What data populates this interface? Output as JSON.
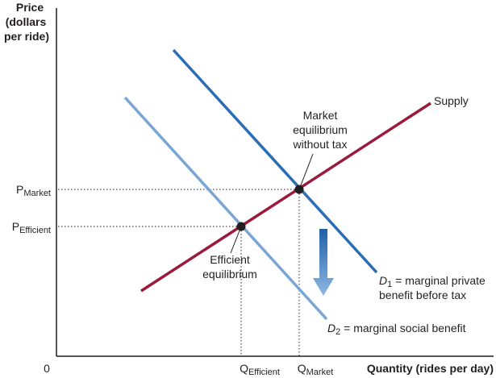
{
  "axes": {
    "y_label_lines": [
      "Price",
      "(dollars",
      "per ride)"
    ],
    "x_label": "Quantity (rides per day)",
    "origin": "0"
  },
  "ticks": {
    "p_market": {
      "main": "P",
      "sub": "Market"
    },
    "p_efficient": {
      "main": "P",
      "sub": "Efficient"
    },
    "q_efficient": {
      "main": "Q",
      "sub": "Efficient"
    },
    "q_market": {
      "main": "Q",
      "sub": "Market"
    }
  },
  "curves": {
    "supply": {
      "label": "Supply",
      "color": "#9b1b3c"
    },
    "d1": {
      "main": "D",
      "sub": "1",
      "text_line1": " = marginal private",
      "text_line2": "benefit before tax",
      "color": "#2a6db5"
    },
    "d2": {
      "main": "D",
      "sub": "2",
      "text": " = marginal social benefit",
      "color": "#7aa6d6"
    }
  },
  "annotations": {
    "market_eq": [
      "Market",
      "equilibrium",
      "without tax"
    ],
    "efficient_eq": [
      "Efficient",
      "equilibrium"
    ]
  },
  "colors": {
    "axis": "#231f20",
    "point": "#231f20",
    "arrow_top": "#1f5fa8",
    "arrow_bottom": "#8fb8e3"
  }
}
